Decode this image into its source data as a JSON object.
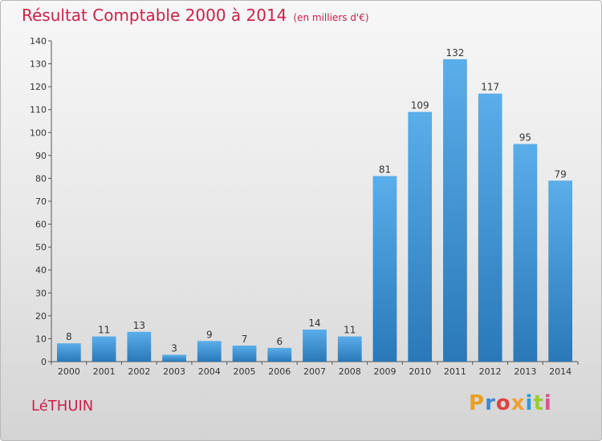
{
  "header": {
    "title": "Résultat Comptable 2000 à 2014",
    "subtitle": "(en milliers d'€)"
  },
  "footer": {
    "commune": "LéTHUIN",
    "brand": {
      "letters": [
        "P",
        "r",
        "o",
        "x",
        "i",
        "t",
        "i"
      ],
      "colors": [
        "#e8a020",
        "#3a88d0",
        "#e04040",
        "#f0a030",
        "#2e9ad8",
        "#9acd32",
        "#e05090"
      ]
    }
  },
  "chart_data": {
    "type": "bar",
    "categories": [
      "2000",
      "2001",
      "2002",
      "2003",
      "2004",
      "2005",
      "2006",
      "2007",
      "2008",
      "2009",
      "2010",
      "2011",
      "2012",
      "2013",
      "2014"
    ],
    "values": [
      8,
      11,
      13,
      3,
      9,
      7,
      6,
      14,
      11,
      81,
      109,
      132,
      117,
      95,
      79
    ],
    "title": "Résultat Comptable 2000 à 2014",
    "subtitle": "(en milliers d'€)",
    "xlabel": "",
    "ylabel": "",
    "ylim": [
      0,
      140
    ],
    "yticks": [
      0,
      10,
      20,
      30,
      40,
      50,
      60,
      70,
      80,
      90,
      100,
      110,
      120,
      130,
      140
    ],
    "grid": false,
    "bar_color_top": "#5aaeea",
    "bar_color_bottom": "#2a78b8"
  }
}
